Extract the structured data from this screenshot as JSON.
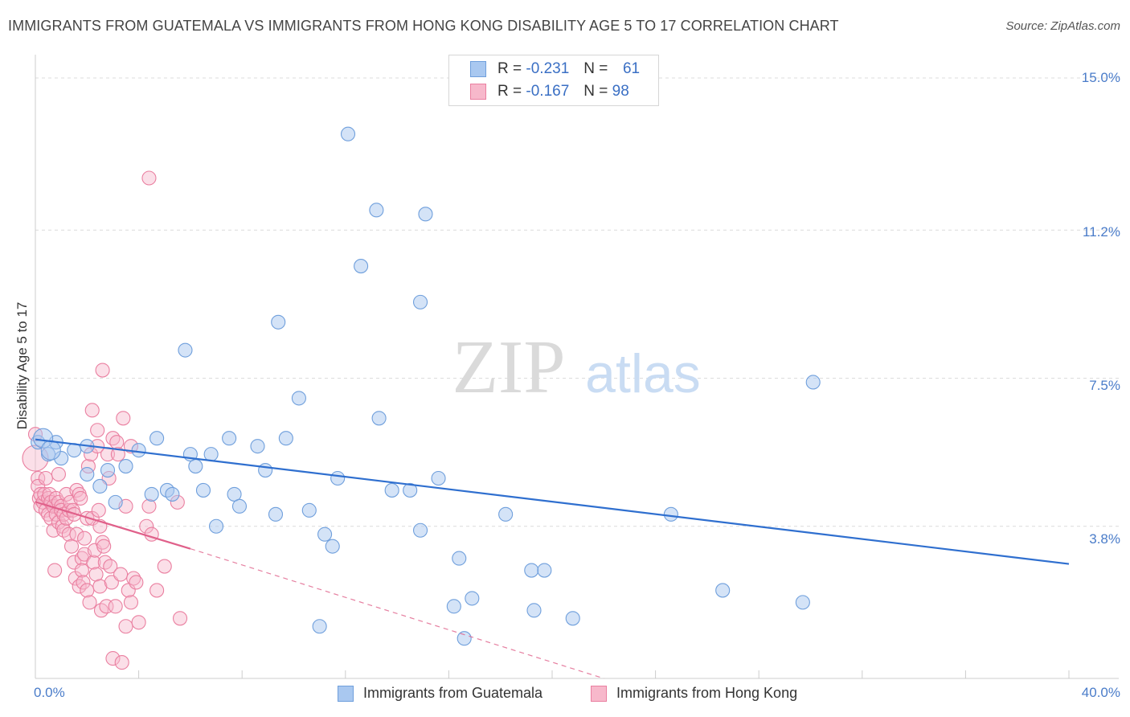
{
  "title": "IMMIGRANTS FROM GUATEMALA VS IMMIGRANTS FROM HONG KONG DISABILITY AGE 5 TO 17 CORRELATION CHART",
  "source": "Source: ZipAtlas.com",
  "watermark": {
    "zip": "ZIP",
    "atlas": "atlas"
  },
  "colors": {
    "blue_fill": "#a9c8f0",
    "blue_stroke": "#6f9fdc",
    "blue_line": "#2f6fcf",
    "pink_fill": "#f7b8cb",
    "pink_stroke": "#ea7fa0",
    "pink_line": "#e0608a",
    "grid": "#dcdcdc",
    "tick_text": "#4a7cc9"
  },
  "stats": {
    "series": [
      {
        "r_label": "R =",
        "r_value": "-0.231",
        "n_label": "N =",
        "n_value": "61"
      },
      {
        "r_label": "R =",
        "r_value": "-0.167",
        "n_label": "N =",
        "n_value": "98"
      }
    ]
  },
  "chart_data": {
    "type": "scatter",
    "title": "IMMIGRANTS FROM GUATEMALA VS IMMIGRANTS FROM HONG KONG DISABILITY AGE 5 TO 17 CORRELATION CHART",
    "xlabel": "",
    "ylabel": "Disability Age 5 to 17",
    "xlim": [
      0,
      40
    ],
    "ylim": [
      0,
      15.5
    ],
    "x_tick_labels": [
      "0.0%",
      "40.0%"
    ],
    "y_ticks": [
      3.8,
      7.5,
      11.2,
      15.0
    ],
    "y_tick_labels": [
      "3.8%",
      "7.5%",
      "11.2%",
      "15.0%"
    ],
    "legend_position": "bottom-center",
    "series": [
      {
        "name": "Immigrants from Guatemala",
        "color": "blue",
        "trend": {
          "x": [
            0,
            40
          ],
          "y": [
            5.97,
            2.86
          ]
        },
        "points": [
          [
            0.1,
            5.9
          ],
          [
            0.5,
            5.6
          ],
          [
            0.8,
            5.9
          ],
          [
            1.0,
            5.5
          ],
          [
            1.5,
            5.7
          ],
          [
            2.0,
            5.8
          ],
          [
            2.0,
            5.1
          ],
          [
            2.5,
            4.8
          ],
          [
            2.8,
            5.2
          ],
          [
            3.1,
            4.4
          ],
          [
            3.5,
            5.3
          ],
          [
            4.0,
            5.7
          ],
          [
            4.5,
            4.6
          ],
          [
            4.7,
            6.0
          ],
          [
            5.1,
            4.7
          ],
          [
            5.3,
            4.6
          ],
          [
            5.8,
            8.2
          ],
          [
            6.0,
            5.6
          ],
          [
            6.2,
            5.3
          ],
          [
            6.5,
            4.7
          ],
          [
            6.8,
            5.6
          ],
          [
            7.0,
            3.8
          ],
          [
            7.5,
            6.0
          ],
          [
            7.7,
            4.6
          ],
          [
            7.9,
            4.3
          ],
          [
            8.6,
            5.8
          ],
          [
            8.9,
            5.2
          ],
          [
            9.3,
            4.1
          ],
          [
            9.4,
            8.9
          ],
          [
            9.7,
            6.0
          ],
          [
            10.2,
            7.0
          ],
          [
            10.6,
            4.2
          ],
          [
            11.0,
            1.3
          ],
          [
            11.2,
            3.6
          ],
          [
            11.5,
            3.3
          ],
          [
            11.7,
            5.0
          ],
          [
            12.6,
            10.3
          ],
          [
            12.1,
            13.6
          ],
          [
            13.2,
            11.7
          ],
          [
            13.3,
            6.5
          ],
          [
            13.8,
            4.7
          ],
          [
            14.5,
            4.7
          ],
          [
            14.9,
            3.7
          ],
          [
            14.9,
            9.4
          ],
          [
            15.1,
            11.6
          ],
          [
            15.6,
            5.0
          ],
          [
            16.2,
            1.8
          ],
          [
            16.4,
            3.0
          ],
          [
            16.6,
            1.0
          ],
          [
            16.9,
            2.0
          ],
          [
            18.2,
            4.1
          ],
          [
            19.2,
            2.7
          ],
          [
            19.3,
            1.7
          ],
          [
            19.7,
            2.7
          ],
          [
            20.8,
            1.5
          ],
          [
            24.6,
            4.1
          ],
          [
            26.6,
            2.2
          ],
          [
            29.7,
            1.9
          ],
          [
            30.1,
            7.4
          ],
          [
            0.3,
            6.0
          ],
          [
            0.6,
            5.7
          ]
        ]
      },
      {
        "name": "Immigrants from Hong Kong",
        "color": "pink",
        "trend": {
          "x": [
            0,
            6
          ],
          "y": [
            4.41,
            3.24
          ]
        },
        "trend_extension": {
          "x": [
            6,
            22
          ],
          "y": [
            3.24,
            0.0
          ]
        },
        "points": [
          [
            0.0,
            6.1
          ],
          [
            0.1,
            5.0
          ],
          [
            0.1,
            4.8
          ],
          [
            0.15,
            4.5
          ],
          [
            0.2,
            4.6
          ],
          [
            0.2,
            4.3
          ],
          [
            0.3,
            4.4
          ],
          [
            0.35,
            4.6
          ],
          [
            0.4,
            4.2
          ],
          [
            0.4,
            5.0
          ],
          [
            0.5,
            4.5
          ],
          [
            0.5,
            4.1
          ],
          [
            0.55,
            4.6
          ],
          [
            0.6,
            4.4
          ],
          [
            0.6,
            4.0
          ],
          [
            0.7,
            3.7
          ],
          [
            0.7,
            4.3
          ],
          [
            0.75,
            2.7
          ],
          [
            0.8,
            4.5
          ],
          [
            0.8,
            4.1
          ],
          [
            0.9,
            4.4
          ],
          [
            0.9,
            3.9
          ],
          [
            0.9,
            5.1
          ],
          [
            1.0,
            4.3
          ],
          [
            1.0,
            4.2
          ],
          [
            1.05,
            3.8
          ],
          [
            1.1,
            4.1
          ],
          [
            1.1,
            3.7
          ],
          [
            1.2,
            4.6
          ],
          [
            1.2,
            4.0
          ],
          [
            1.3,
            4.2
          ],
          [
            1.3,
            3.6
          ],
          [
            1.35,
            4.4
          ],
          [
            1.4,
            3.3
          ],
          [
            1.45,
            4.2
          ],
          [
            1.5,
            2.9
          ],
          [
            1.5,
            4.1
          ],
          [
            1.55,
            2.5
          ],
          [
            1.6,
            3.6
          ],
          [
            1.6,
            4.7
          ],
          [
            1.7,
            4.6
          ],
          [
            1.7,
            2.3
          ],
          [
            1.75,
            4.5
          ],
          [
            1.8,
            3.0
          ],
          [
            1.8,
            2.7
          ],
          [
            1.85,
            2.4
          ],
          [
            1.9,
            3.1
          ],
          [
            1.9,
            3.5
          ],
          [
            2.0,
            4.0
          ],
          [
            2.0,
            2.2
          ],
          [
            2.05,
            5.3
          ],
          [
            2.1,
            1.9
          ],
          [
            2.15,
            5.6
          ],
          [
            2.2,
            6.7
          ],
          [
            2.2,
            4.0
          ],
          [
            2.25,
            2.9
          ],
          [
            2.3,
            3.2
          ],
          [
            2.35,
            2.6
          ],
          [
            2.4,
            6.2
          ],
          [
            2.4,
            5.8
          ],
          [
            2.45,
            4.2
          ],
          [
            2.5,
            3.8
          ],
          [
            2.5,
            2.3
          ],
          [
            2.55,
            1.7
          ],
          [
            2.6,
            3.4
          ],
          [
            2.6,
            7.7
          ],
          [
            2.65,
            3.3
          ],
          [
            2.7,
            2.9
          ],
          [
            2.75,
            1.8
          ],
          [
            2.8,
            5.6
          ],
          [
            2.85,
            5.0
          ],
          [
            2.9,
            2.8
          ],
          [
            2.95,
            2.4
          ],
          [
            3.0,
            0.5
          ],
          [
            3.0,
            6.0
          ],
          [
            3.1,
            1.8
          ],
          [
            3.15,
            5.9
          ],
          [
            3.2,
            5.6
          ],
          [
            3.3,
            2.6
          ],
          [
            3.35,
            0.4
          ],
          [
            3.4,
            6.5
          ],
          [
            3.5,
            1.3
          ],
          [
            3.5,
            4.3
          ],
          [
            3.6,
            2.2
          ],
          [
            3.7,
            5.8
          ],
          [
            3.7,
            1.9
          ],
          [
            3.8,
            2.5
          ],
          [
            3.9,
            2.4
          ],
          [
            4.0,
            1.4
          ],
          [
            4.3,
            3.8
          ],
          [
            4.4,
            4.3
          ],
          [
            4.5,
            3.6
          ],
          [
            4.7,
            2.2
          ],
          [
            5.0,
            2.8
          ],
          [
            5.5,
            4.4
          ],
          [
            5.6,
            1.5
          ],
          [
            4.4,
            12.5
          ],
          [
            0.0,
            5.5
          ]
        ]
      }
    ]
  },
  "legend": {
    "items": [
      {
        "label": "Immigrants from Guatemala"
      },
      {
        "label": "Immigrants from Hong Kong"
      }
    ]
  }
}
